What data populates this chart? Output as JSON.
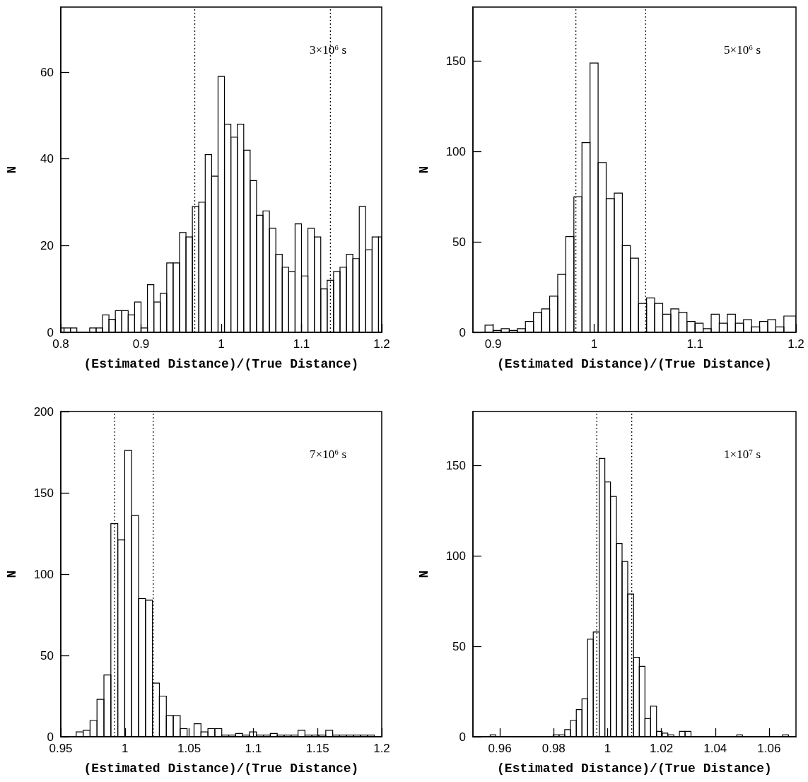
{
  "chart_data": [
    {
      "type": "histogram",
      "xlabel": "(Estimated Distance)/(True Distance)",
      "ylabel": "N",
      "annotations": [
        "3×10⁶ s"
      ],
      "color": "#000000",
      "bins": [
        0.8,
        0.804,
        0.812,
        0.82,
        0.828,
        0.836,
        0.844,
        0.852,
        0.86,
        0.868,
        0.876,
        0.884,
        0.892,
        0.9,
        0.908,
        0.916,
        0.924,
        0.932,
        0.94,
        0.948,
        0.956,
        0.964,
        0.972,
        0.98,
        0.988,
        0.996,
        1.004,
        1.012,
        1.02,
        1.028,
        1.036,
        1.044,
        1.052,
        1.06,
        1.068,
        1.076,
        1.084,
        1.092,
        1.1,
        1.108,
        1.116,
        1.124,
        1.132,
        1.14,
        1.148,
        1.156,
        1.164,
        1.172,
        1.18,
        1.188,
        1.196,
        1.2
      ],
      "values": [
        1,
        1,
        1,
        0,
        0,
        1,
        1,
        4,
        3,
        5,
        5,
        4,
        7,
        1,
        11,
        7,
        9,
        16,
        16,
        23,
        22,
        29,
        30,
        41,
        36,
        59,
        48,
        45,
        48,
        42,
        35,
        27,
        28,
        24,
        18,
        15,
        14,
        25,
        13,
        24,
        22,
        10,
        12,
        14,
        15,
        18,
        17,
        29,
        19,
        22,
        22
      ],
      "xlim": [
        0.8,
        1.2
      ],
      "xticks": [
        0.8,
        0.9,
        1,
        1.1,
        1.2
      ],
      "ylim": [
        0,
        75
      ],
      "yticks": [
        0,
        20,
        40,
        60
      ],
      "grid": false,
      "ref_lines": [
        {
          "axis": "x",
          "value": 0.967,
          "color": "#000000",
          "line_style": "dotted"
        },
        {
          "axis": "x",
          "value": 1.136,
          "color": "#000000",
          "line_style": "dotted"
        }
      ]
    },
    {
      "type": "histogram",
      "xlabel": "(Estimated Distance)/(True Distance)",
      "ylabel": "N",
      "annotations": [
        "5×10⁶ s"
      ],
      "color": "#000000",
      "bins": [
        0.892,
        0.9,
        0.908,
        0.916,
        0.924,
        0.932,
        0.94,
        0.948,
        0.956,
        0.964,
        0.972,
        0.98,
        0.988,
        0.996,
        1.004,
        1.012,
        1.02,
        1.028,
        1.036,
        1.044,
        1.052,
        1.06,
        1.068,
        1.076,
        1.084,
        1.092,
        1.1,
        1.108,
        1.116,
        1.124,
        1.132,
        1.14,
        1.148,
        1.156,
        1.164,
        1.172,
        1.18,
        1.188,
        1.2
      ],
      "values": [
        4,
        1,
        2,
        1,
        2,
        6,
        11,
        13,
        20,
        32,
        53,
        75,
        105,
        149,
        94,
        74,
        77,
        48,
        41,
        16,
        19,
        16,
        10,
        13,
        11,
        6,
        5,
        2,
        10,
        5,
        10,
        5,
        7,
        3,
        6,
        7,
        3,
        9
      ],
      "xlim": [
        0.88,
        1.2
      ],
      "xticks": [
        0.9,
        1,
        1.1,
        1.2
      ],
      "ylim": [
        0,
        180
      ],
      "yticks": [
        0,
        50,
        100,
        150
      ],
      "grid": false,
      "ref_lines": [
        {
          "axis": "x",
          "value": 0.982,
          "color": "#000000",
          "line_style": "dotted"
        },
        {
          "axis": "x",
          "value": 1.051,
          "color": "#000000",
          "line_style": "dotted"
        }
      ]
    },
    {
      "type": "histogram",
      "xlabel": "(Estimated Distance)/(True Distance)",
      "ylabel": "N",
      "annotations": [
        "7×10⁶ s"
      ],
      "color": "#000000",
      "bins": [
        0.962,
        0.9674,
        0.9728,
        0.9782,
        0.9836,
        0.989,
        0.9944,
        0.9998,
        1.0052,
        1.0106,
        1.016,
        1.0214,
        1.0268,
        1.0322,
        1.0376,
        1.043,
        1.0484,
        1.0538,
        1.0592,
        1.0646,
        1.07,
        1.0754,
        1.0808,
        1.0862,
        1.0916,
        1.097,
        1.1024,
        1.1078,
        1.1132,
        1.1186,
        1.124,
        1.1294,
        1.1348,
        1.1402,
        1.1456,
        1.151,
        1.1564,
        1.1618,
        1.1672,
        1.1726,
        1.178,
        1.1834,
        1.1888,
        1.1942
      ],
      "values": [
        3,
        4,
        10,
        23,
        38,
        131,
        121,
        176,
        136,
        85,
        84,
        33,
        25,
        13,
        13,
        5,
        0,
        8,
        3,
        5,
        5,
        1,
        1,
        2,
        1,
        3,
        1,
        1,
        2,
        1,
        1,
        1,
        4,
        1,
        1,
        1,
        4,
        1,
        1,
        1,
        1,
        1,
        1
      ],
      "xlim": [
        0.95,
        1.2
      ],
      "xticks": [
        0.95,
        1,
        1.05,
        1.1,
        1.15,
        1.2
      ],
      "ylim": [
        0,
        200
      ],
      "yticks": [
        0,
        50,
        100,
        150,
        200
      ],
      "grid": false,
      "ref_lines": [
        {
          "axis": "x",
          "value": 0.992,
          "color": "#000000",
          "line_style": "dotted"
        },
        {
          "axis": "x",
          "value": 1.022,
          "color": "#000000",
          "line_style": "dotted"
        }
      ]
    },
    {
      "type": "histogram",
      "xlabel": "(Estimated Distance)/(True Distance)",
      "ylabel": "N",
      "annotations": [
        "1×10⁷ s"
      ],
      "color": "#000000",
      "bins": [
        0.9564,
        0.9585,
        0.9607,
        0.9628,
        0.9649,
        0.9671,
        0.9692,
        0.9713,
        0.9734,
        0.9756,
        0.9777,
        0.9798,
        0.982,
        0.9841,
        0.9862,
        0.9884,
        0.9905,
        0.9926,
        0.9947,
        0.9969,
        0.999,
        1.0011,
        1.0033,
        1.0054,
        1.0075,
        1.0097,
        1.0118,
        1.0139,
        1.016,
        1.0182,
        1.0203,
        1.0224,
        1.0246,
        1.0267,
        1.0288,
        1.031,
        1.0331,
        1.0352,
        1.0373,
        1.0395,
        1.0416,
        1.0437,
        1.0459,
        1.048,
        1.0501,
        1.0523,
        1.0544,
        1.0565,
        1.0586,
        1.0608,
        1.0629,
        1.065,
        1.0672
      ],
      "values": [
        1,
        0,
        0,
        0,
        0,
        0,
        0,
        0,
        0,
        0,
        0,
        1,
        1,
        4,
        9,
        15,
        21,
        54,
        58,
        154,
        141,
        133,
        107,
        97,
        79,
        44,
        39,
        10,
        17,
        3,
        2,
        1,
        0,
        3,
        3,
        0,
        0,
        0,
        0,
        0,
        0,
        0,
        0,
        1,
        0,
        0,
        0,
        0,
        0,
        0,
        0,
        1
      ],
      "xlim": [
        0.95,
        1.07
      ],
      "xticks": [
        0.96,
        0.98,
        1,
        1.02,
        1.04,
        1.06
      ],
      "ylim": [
        0,
        180
      ],
      "yticks": [
        0,
        50,
        100,
        150
      ],
      "grid": false,
      "ref_lines": [
        {
          "axis": "x",
          "value": 0.996,
          "color": "#000000",
          "line_style": "dotted"
        },
        {
          "axis": "x",
          "value": 1.009,
          "color": "#000000",
          "line_style": "dotted"
        }
      ]
    }
  ]
}
